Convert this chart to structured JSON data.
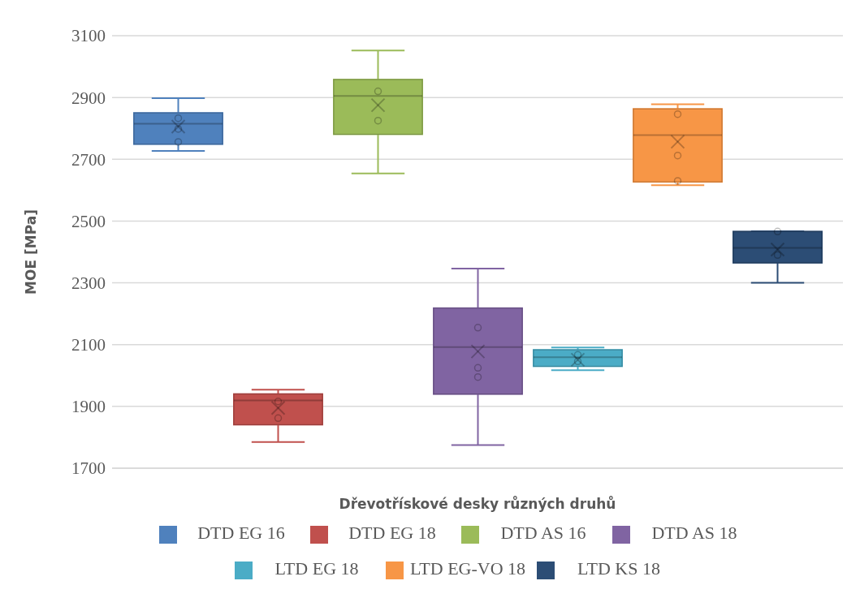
{
  "chart_data": {
    "type": "box",
    "xlabel": "Dřevotřískové desky různých druhů",
    "ylabel": "MOE [MPa]",
    "categories": [
      null
    ],
    "ylim": [
      1700,
      3100
    ],
    "yticks": [
      1700,
      1900,
      2100,
      2300,
      2500,
      2700,
      2900,
      3100
    ],
    "grid": "y",
    "legend": "bottom",
    "tick_labels": "y",
    "series": [
      {
        "name": "DTD EG 16",
        "color": "#4f81bd",
        "boxes": [
          {
            "low": 2727,
            "q1": 2749,
            "median": 2815,
            "q3": 2850,
            "high": 2898,
            "mean": 2806,
            "outliers": [
              2833,
              2798,
              2756
            ]
          }
        ]
      },
      {
        "name": "DTD EG 18",
        "color": "#c0504d",
        "boxes": [
          {
            "low": 1785,
            "q1": 1841,
            "median": 1919,
            "q3": 1940,
            "high": 1954,
            "mean": 1895,
            "outliers": [
              1916,
              1862
            ]
          }
        ]
      },
      {
        "name": "DTD AS 16",
        "color": "#9bbb59",
        "boxes": [
          {
            "low": 2654,
            "q1": 2781,
            "median": 2905,
            "q3": 2958,
            "high": 3052,
            "mean": 2875,
            "outliers": [
              2920,
              2825
            ]
          }
        ]
      },
      {
        "name": "DTD AS 18",
        "color": "#8064a2",
        "boxes": [
          {
            "low": 1775,
            "q1": 1940,
            "median": 2092,
            "q3": 2218,
            "high": 2346,
            "mean": 2078,
            "outliers": [
              2155,
              2025,
              1995
            ]
          }
        ]
      },
      {
        "name": "LTD EG 18",
        "color": "#4bacc6",
        "boxes": [
          {
            "low": 2017,
            "q1": 2030,
            "median": 2059,
            "q3": 2083,
            "high": 2091,
            "mean": 2051,
            "outliers": [
              2067,
              2046
            ]
          }
        ]
      },
      {
        "name": "LTD EG-VO 18",
        "color": "#f79646",
        "boxes": [
          {
            "low": 2616,
            "q1": 2627,
            "median": 2778,
            "q3": 2863,
            "high": 2878,
            "mean": 2757,
            "outliers": [
              2846,
              2712,
              2630
            ]
          }
        ]
      },
      {
        "name": "LTD KS 18",
        "color": "#2c4d75",
        "boxes": [
          {
            "low": 2300,
            "q1": 2365,
            "median": 2413,
            "q3": 2466,
            "high": 2467,
            "mean": 2408,
            "outliers": [
              2466,
              2390
            ]
          }
        ]
      }
    ]
  }
}
